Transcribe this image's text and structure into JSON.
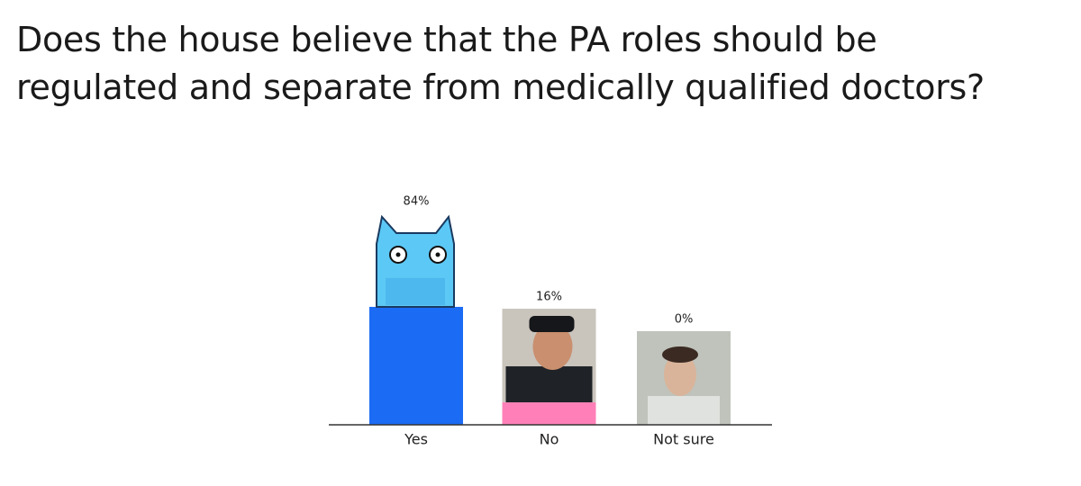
{
  "chart_data": {
    "type": "bar",
    "title": "Does the house believe that the PA roles should be regulated and separate from medically qualified doctors?",
    "categories": [
      "Yes",
      "No",
      "Not sure"
    ],
    "values": [
      84,
      16,
      0
    ],
    "value_labels": [
      "84%",
      "16%",
      "0%"
    ],
    "colors": [
      "#1c6bf4",
      "#ff80b8",
      "#8a6ef0"
    ]
  }
}
